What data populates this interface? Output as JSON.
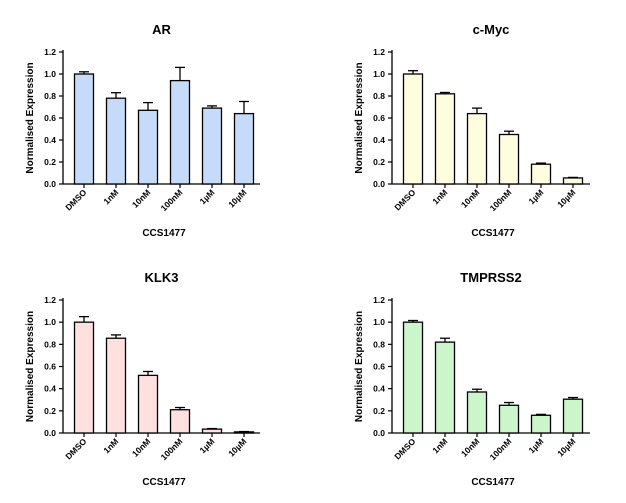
{
  "chart_data": [
    {
      "type": "bar",
      "title": "AR",
      "xlabel": "CCS1477",
      "ylabel": "Normalised Expression",
      "categories": [
        "DMSO",
        "1nM",
        "10nM",
        "100nM",
        "1µM",
        "10µM"
      ],
      "values": [
        1.0,
        0.78,
        0.67,
        0.94,
        0.69,
        0.64
      ],
      "errors": [
        0.02,
        0.05,
        0.07,
        0.12,
        0.02,
        0.11
      ],
      "ylim": [
        0,
        1.2
      ],
      "yticks": [
        "0.0",
        "0.2",
        "0.4",
        "0.6",
        "0.8",
        "1.0",
        "1.2"
      ],
      "color": "#c6dbf7",
      "grid": false
    },
    {
      "type": "bar",
      "title": "c-Myc",
      "xlabel": "CCS1477",
      "ylabel": "Normalised Expression",
      "categories": [
        "DMSO",
        "1nM",
        "10nM",
        "100nM",
        "1µM",
        "10µM"
      ],
      "values": [
        1.0,
        0.82,
        0.64,
        0.45,
        0.18,
        0.055
      ],
      "errors": [
        0.03,
        0.012,
        0.05,
        0.03,
        0.01,
        0.005
      ],
      "ylim": [
        0,
        1.2
      ],
      "yticks": [
        "0.0",
        "0.2",
        "0.4",
        "0.6",
        "0.8",
        "1.0",
        "1.2"
      ],
      "color": "#fffde0",
      "grid": false
    },
    {
      "type": "bar",
      "title": "KLK3",
      "xlabel": "CCS1477",
      "ylabel": "Normalised Expression",
      "categories": [
        "DMSO",
        "1nM",
        "10nM",
        "100nM",
        "1µM",
        "10µM"
      ],
      "values": [
        1.0,
        0.855,
        0.52,
        0.21,
        0.035,
        0.01
      ],
      "errors": [
        0.05,
        0.03,
        0.035,
        0.02,
        0.005,
        0.003
      ],
      "ylim": [
        0,
        1.2
      ],
      "yticks": [
        "0.0",
        "0.2",
        "0.4",
        "0.6",
        "0.8",
        "1.0",
        "1.2"
      ],
      "color": "#ffe0e0",
      "grid": false
    },
    {
      "type": "bar",
      "title": "TMPRSS2",
      "xlabel": "CCS1477",
      "ylabel": "Normalised Expression",
      "categories": [
        "DMSO",
        "1nM",
        "10nM",
        "100nM",
        "1µM",
        "10µM"
      ],
      "values": [
        1.0,
        0.82,
        0.37,
        0.25,
        0.16,
        0.305
      ],
      "errors": [
        0.015,
        0.035,
        0.025,
        0.025,
        0.008,
        0.015
      ],
      "ylim": [
        0,
        1.2
      ],
      "yticks": [
        "0.0",
        "0.2",
        "0.4",
        "0.6",
        "0.8",
        "1.0",
        "1.2"
      ],
      "color": "#ccf5cc",
      "grid": false
    }
  ]
}
